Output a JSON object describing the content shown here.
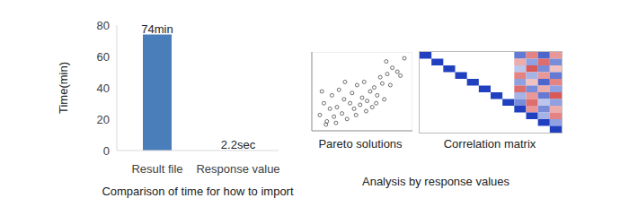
{
  "caption": "Analysis by response values",
  "chart_data": [
    {
      "type": "bar",
      "categories": [
        "Result file",
        "Response value"
      ],
      "values": [
        74,
        0.0367
      ],
      "value_labels": [
        "74min",
        "2.2sec"
      ],
      "data_labels": true,
      "color": "#4a7ebb",
      "x_label": "Comparison of time for how to import",
      "y_label": "Time(min)",
      "ylim": [
        0,
        80
      ],
      "yticks": [
        0,
        20,
        40,
        60,
        80
      ],
      "grid": false
    },
    {
      "type": "scatter",
      "title": "Pareto solutions",
      "x": [
        8,
        12,
        15,
        18,
        20,
        22,
        25,
        27,
        30,
        32,
        35,
        38,
        40,
        42,
        45,
        48,
        50,
        52,
        55,
        58,
        60,
        62,
        65,
        68,
        70,
        72,
        75,
        78,
        80,
        85,
        10,
        14,
        24,
        33,
        44,
        54,
        64,
        74,
        88,
        92
      ],
      "values": [
        20,
        35,
        12,
        28,
        45,
        18,
        30,
        52,
        22,
        40,
        15,
        35,
        48,
        28,
        58,
        33,
        42,
        62,
        38,
        50,
        30,
        55,
        45,
        68,
        60,
        40,
        72,
        58,
        80,
        75,
        50,
        8,
        10,
        62,
        20,
        25,
        35,
        88,
        70,
        92
      ],
      "xlim": [
        0,
        100
      ],
      "ylim": [
        0,
        100
      ],
      "xticks": [
        0,
        20,
        40,
        60,
        80,
        100
      ],
      "yticks": [
        0,
        20,
        40,
        60,
        80,
        100
      ],
      "grid": true,
      "tick_labels": false,
      "marker": "open_circle",
      "color": "#333333"
    },
    {
      "type": "heatmap",
      "title": "Correlation matrix",
      "zlim": [
        -1,
        1
      ],
      "tick_labels": false,
      "matrix": [
        [
          1,
          null,
          null,
          null,
          null,
          null,
          null,
          null,
          0.7,
          -0.6,
          0.8,
          -0.5
        ],
        [
          null,
          1,
          null,
          null,
          null,
          null,
          null,
          null,
          -0.4,
          0.5,
          -0.7,
          0.6
        ],
        [
          null,
          null,
          1,
          null,
          null,
          null,
          null,
          null,
          0.3,
          -0.8,
          0.6,
          -0.3
        ],
        [
          null,
          null,
          null,
          1,
          null,
          null,
          null,
          null,
          -0.6,
          0.4,
          -0.5,
          0.7
        ],
        [
          null,
          null,
          null,
          null,
          1,
          null,
          null,
          null,
          0.5,
          -0.3,
          0.8,
          -0.6
        ],
        [
          null,
          null,
          null,
          null,
          null,
          1,
          null,
          null,
          -0.7,
          0.6,
          -0.4,
          0.5
        ],
        [
          null,
          null,
          null,
          null,
          null,
          null,
          1,
          null,
          0.4,
          -0.5,
          0.7,
          -0.8
        ],
        [
          null,
          null,
          null,
          null,
          null,
          null,
          null,
          1,
          0.6,
          -0.7,
          0.3,
          0.5
        ],
        [
          null,
          null,
          null,
          null,
          null,
          null,
          null,
          null,
          1,
          -0.5,
          0.6,
          -0.4
        ],
        [
          null,
          null,
          null,
          null,
          null,
          null,
          null,
          null,
          null,
          1,
          0.4,
          -0.6
        ],
        [
          null,
          null,
          null,
          null,
          null,
          null,
          null,
          null,
          null,
          null,
          1,
          0.5
        ],
        [
          null,
          null,
          null,
          null,
          null,
          null,
          null,
          null,
          null,
          null,
          null,
          1
        ]
      ]
    }
  ]
}
